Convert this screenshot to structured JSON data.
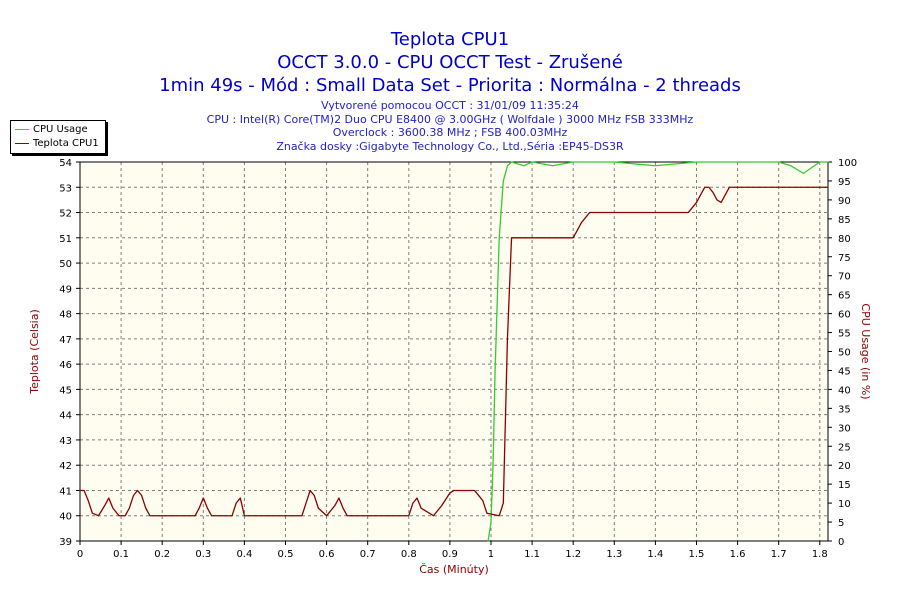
{
  "chart_data": {
    "type": "line",
    "title": "Teplota CPU1",
    "subtitle_lines": [
      "OCCT 3.0.0 - CPU OCCT Test - Zrušené",
      "1min 49s - Mód : Small Data Set - Priorita : Normálna - 2 threads"
    ],
    "info_lines": [
      "Vytvorené pomocou OCCT : 31/01/09 11:35:24",
      "CPU : Intel(R) Core(TM)2 Duo CPU E8400 @ 3.00GHz ( Wolfdale ) 3000 MHz FSB 333MHz",
      "Overclock : 3600.38 MHz ; FSB 400.03MHz",
      "Značka dosky :Gigabyte Technology Co., Ltd.,Séria :EP45-DS3R"
    ],
    "xlabel": "Čas (Minúty)",
    "ylabel_left": "Teplota (Celsia)",
    "ylabel_right": "CPU Usage (in %)",
    "xlim": [
      0,
      1.82
    ],
    "ylim_left": [
      39,
      54
    ],
    "ylim_right": [
      0,
      100
    ],
    "x_ticks": [
      "0",
      "0.1",
      "0.2",
      "0.3",
      "0.4",
      "0.5",
      "0.6",
      "0.7",
      "0.8",
      "0.9",
      "1",
      "1.1",
      "1.2",
      "1.3",
      "1.4",
      "1.5",
      "1.6",
      "1.7",
      "1.8"
    ],
    "y_left_ticks": [
      "39",
      "40",
      "41",
      "42",
      "43",
      "44",
      "45",
      "46",
      "47",
      "48",
      "49",
      "50",
      "51",
      "52",
      "53",
      "54"
    ],
    "y_right_ticks": [
      "0",
      "5",
      "10",
      "15",
      "20",
      "25",
      "30",
      "35",
      "40",
      "45",
      "50",
      "55",
      "60",
      "65",
      "70",
      "75",
      "80",
      "85",
      "90",
      "95",
      "100"
    ],
    "grid": true,
    "legend": "top-left",
    "colors": {
      "cpu_usage": "#33cc33",
      "temperature": "#8b0000",
      "plot_bg": "#fffcf0",
      "grid": "#7f7f7f",
      "title": "#0000cc"
    },
    "series": [
      {
        "name": "CPU Usage",
        "axis": "right",
        "x": [
          0.993,
          1.0,
          1.005,
          1.01,
          1.02,
          1.03,
          1.04,
          1.05,
          1.08,
          1.1,
          1.15,
          1.2,
          1.3,
          1.4,
          1.5,
          1.6,
          1.7,
          1.73,
          1.76,
          1.8,
          1.82
        ],
        "values": [
          0,
          5,
          20,
          45,
          80,
          95,
          99,
          100,
          99,
          100,
          99,
          100,
          100,
          99,
          100,
          100,
          100,
          99,
          97,
          100,
          100
        ]
      },
      {
        "name": "Teplota CPU1",
        "axis": "left",
        "x": [
          0,
          0.01,
          0.02,
          0.03,
          0.045,
          0.06,
          0.07,
          0.08,
          0.095,
          0.11,
          0.12,
          0.13,
          0.14,
          0.15,
          0.16,
          0.17,
          0.28,
          0.29,
          0.3,
          0.31,
          0.32,
          0.37,
          0.38,
          0.39,
          0.4,
          0.54,
          0.55,
          0.56,
          0.57,
          0.58,
          0.6,
          0.62,
          0.63,
          0.64,
          0.65,
          0.8,
          0.81,
          0.82,
          0.83,
          0.86,
          0.88,
          0.9,
          0.91,
          0.96,
          0.98,
          0.99,
          1.02,
          1.03,
          1.04,
          1.05,
          1.08,
          1.2,
          1.22,
          1.24,
          1.3,
          1.48,
          1.5,
          1.52,
          1.53,
          1.54,
          1.55,
          1.56,
          1.57,
          1.58,
          1.82
        ],
        "values": [
          41,
          41,
          40.6,
          40.1,
          40,
          40.4,
          40.7,
          40.3,
          40,
          40,
          40.3,
          40.8,
          41,
          40.8,
          40.3,
          40,
          40,
          40.3,
          40.7,
          40.3,
          40,
          40,
          40.5,
          40.7,
          40,
          40,
          40.5,
          41,
          40.8,
          40.3,
          40,
          40.4,
          40.7,
          40.3,
          40,
          40,
          40.5,
          40.7,
          40.3,
          40,
          40.4,
          40.9,
          41,
          41,
          40.6,
          40.1,
          40,
          40.5,
          47,
          51,
          51,
          51,
          51.6,
          52,
          52,
          52,
          52.4,
          53,
          53,
          52.8,
          52.5,
          52.4,
          52.7,
          53,
          53
        ]
      }
    ]
  }
}
